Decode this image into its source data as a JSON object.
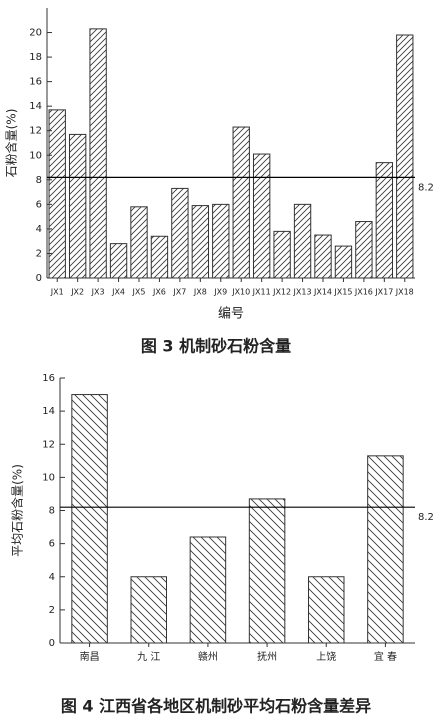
{
  "chart_data": [
    {
      "type": "bar",
      "title": "图 3  机制砂石粉含量",
      "x_label": "编号",
      "y_label": "石粉含量(%)",
      "categories": [
        "JX1",
        "JX2",
        "JX3",
        "JX4",
        "JX5",
        "JX6",
        "JX7",
        "JX8",
        "JX9",
        "JX10",
        "JX11",
        "JX12",
        "JX13",
        "JX14",
        "JX15",
        "JX16",
        "JX17",
        "JX18"
      ],
      "values": [
        13.7,
        11.7,
        20.3,
        2.8,
        5.8,
        3.4,
        7.3,
        5.9,
        6.0,
        12.3,
        10.1,
        3.8,
        6.0,
        3.5,
        2.6,
        4.6,
        9.4,
        19.8
      ],
      "ylim": [
        0,
        22
      ],
      "yticks": [
        0,
        2,
        4,
        6,
        8,
        10,
        12,
        14,
        16,
        18,
        20
      ],
      "reference_line": 8.2,
      "hatch": "/",
      "color": "#333333"
    },
    {
      "type": "bar",
      "title": "图 4  江西省各地区机制砂平均石粉含量差异",
      "y_label": "平均石粉含量(%)",
      "categories": [
        "南昌",
        "九 江",
        "赣州",
        "抚州",
        "上饶",
        "宜 春"
      ],
      "values": [
        15.0,
        4.0,
        6.4,
        8.7,
        4.0,
        11.3
      ],
      "ylim": [
        0,
        16
      ],
      "yticks": [
        0,
        2,
        4,
        6,
        8,
        10,
        12,
        14,
        16
      ],
      "reference_line": 8.2,
      "hatch": "\\",
      "color": "#333333"
    }
  ]
}
